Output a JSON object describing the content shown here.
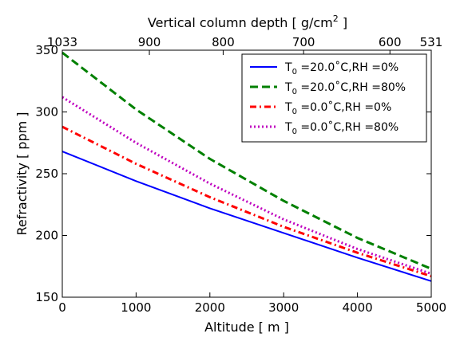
{
  "chart_data": {
    "type": "line",
    "xlabel": "Altitude [ m ]",
    "ylabel": "Refractivity [ ppm ]",
    "top_axis": {
      "label_main": "Vertical column depth [ g/cm",
      "label_sup": "2",
      "label_end": " ]",
      "ticks": [
        {
          "altitude": 0,
          "label": "1033"
        },
        {
          "altitude": 1180,
          "label": "900"
        },
        {
          "altitude": 2180,
          "label": "800"
        },
        {
          "altitude": 3270,
          "label": "700"
        },
        {
          "altitude": 4440,
          "label": "600"
        },
        {
          "altitude": 5000,
          "label": "531"
        }
      ]
    },
    "xlim": [
      0,
      5000
    ],
    "ylim": [
      150,
      350
    ],
    "xticks": [
      0,
      1000,
      2000,
      3000,
      4000,
      5000
    ],
    "yticks": [
      150,
      200,
      250,
      300,
      350
    ],
    "legend_position": "top-right",
    "series": [
      {
        "legend_main": "T",
        "legend_sub": "0",
        "legend_rest": " =20.0˚C,RH =0%",
        "color": "#0000ff",
        "style": "solid",
        "x": [
          0,
          1000,
          2000,
          3000,
          4000,
          5000
        ],
        "y": [
          268,
          244,
          222,
          202,
          182,
          163
        ]
      },
      {
        "legend_main": "T",
        "legend_sub": "0",
        "legend_rest": " =20.0˚C,RH =80%",
        "color": "#008000",
        "style": "dashed",
        "x": [
          0,
          1000,
          2000,
          3000,
          4000,
          5000
        ],
        "y": [
          348,
          302,
          262,
          228,
          198,
          173
        ]
      },
      {
        "legend_main": "T",
        "legend_sub": "0",
        "legend_rest": " =0.0˚C,RH =0%",
        "color": "#ff0000",
        "style": "dashdot",
        "x": [
          0,
          1000,
          2000,
          3000,
          4000,
          5000
        ],
        "y": [
          288,
          258,
          231,
          207,
          186,
          167
        ]
      },
      {
        "legend_main": "T",
        "legend_sub": "0",
        "legend_rest": " =0.0˚C,RH =80%",
        "color": "#bf00bf",
        "style": "dotted",
        "x": [
          0,
          1000,
          2000,
          3000,
          4000,
          5000
        ],
        "y": [
          312,
          275,
          242,
          213,
          189,
          169
        ]
      }
    ]
  }
}
